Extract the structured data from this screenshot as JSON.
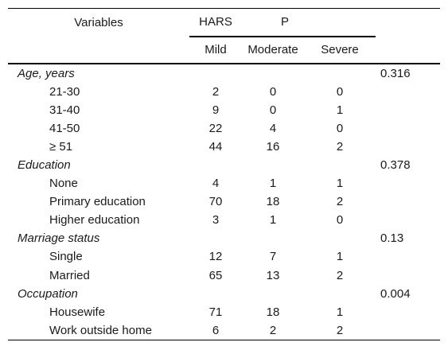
{
  "table": {
    "header": {
      "variables": "Variables",
      "hars": "HARS",
      "p": "P",
      "mild": "Mild",
      "moderate": "Moderate",
      "severe": "Severe"
    },
    "groups": [
      {
        "label": "Age, years",
        "p": "0.316",
        "rows": [
          {
            "label": "21-30",
            "mild": "2",
            "moderate": "0",
            "severe": "0"
          },
          {
            "label": "31-40",
            "mild": "9",
            "moderate": "0",
            "severe": "1"
          },
          {
            "label": "41-50",
            "mild": "22",
            "moderate": "4",
            "severe": "0"
          },
          {
            "label": "≥ 51",
            "mild": "44",
            "moderate": "16",
            "severe": "2"
          }
        ]
      },
      {
        "label": "Education",
        "p": "0.378",
        "rows": [
          {
            "label": "None",
            "mild": "4",
            "moderate": "1",
            "severe": "1"
          },
          {
            "label": "Primary education",
            "mild": "70",
            "moderate": "18",
            "severe": "2"
          },
          {
            "label": "Higher education",
            "mild": "3",
            "moderate": "1",
            "severe": "0"
          }
        ]
      },
      {
        "label": "Marriage status",
        "p": "0.13",
        "rows": [
          {
            "label": "Single",
            "mild": "12",
            "moderate": "7",
            "severe": "1"
          },
          {
            "label": "Married",
            "mild": "65",
            "moderate": "13",
            "severe": "2"
          }
        ]
      },
      {
        "label": "Occupation",
        "p": "0.004",
        "rows": [
          {
            "label": "Housewife",
            "mild": "71",
            "moderate": "18",
            "severe": "1"
          },
          {
            "label": "Work outside home",
            "mild": "6",
            "moderate": "2",
            "severe": "2"
          }
        ]
      }
    ]
  }
}
